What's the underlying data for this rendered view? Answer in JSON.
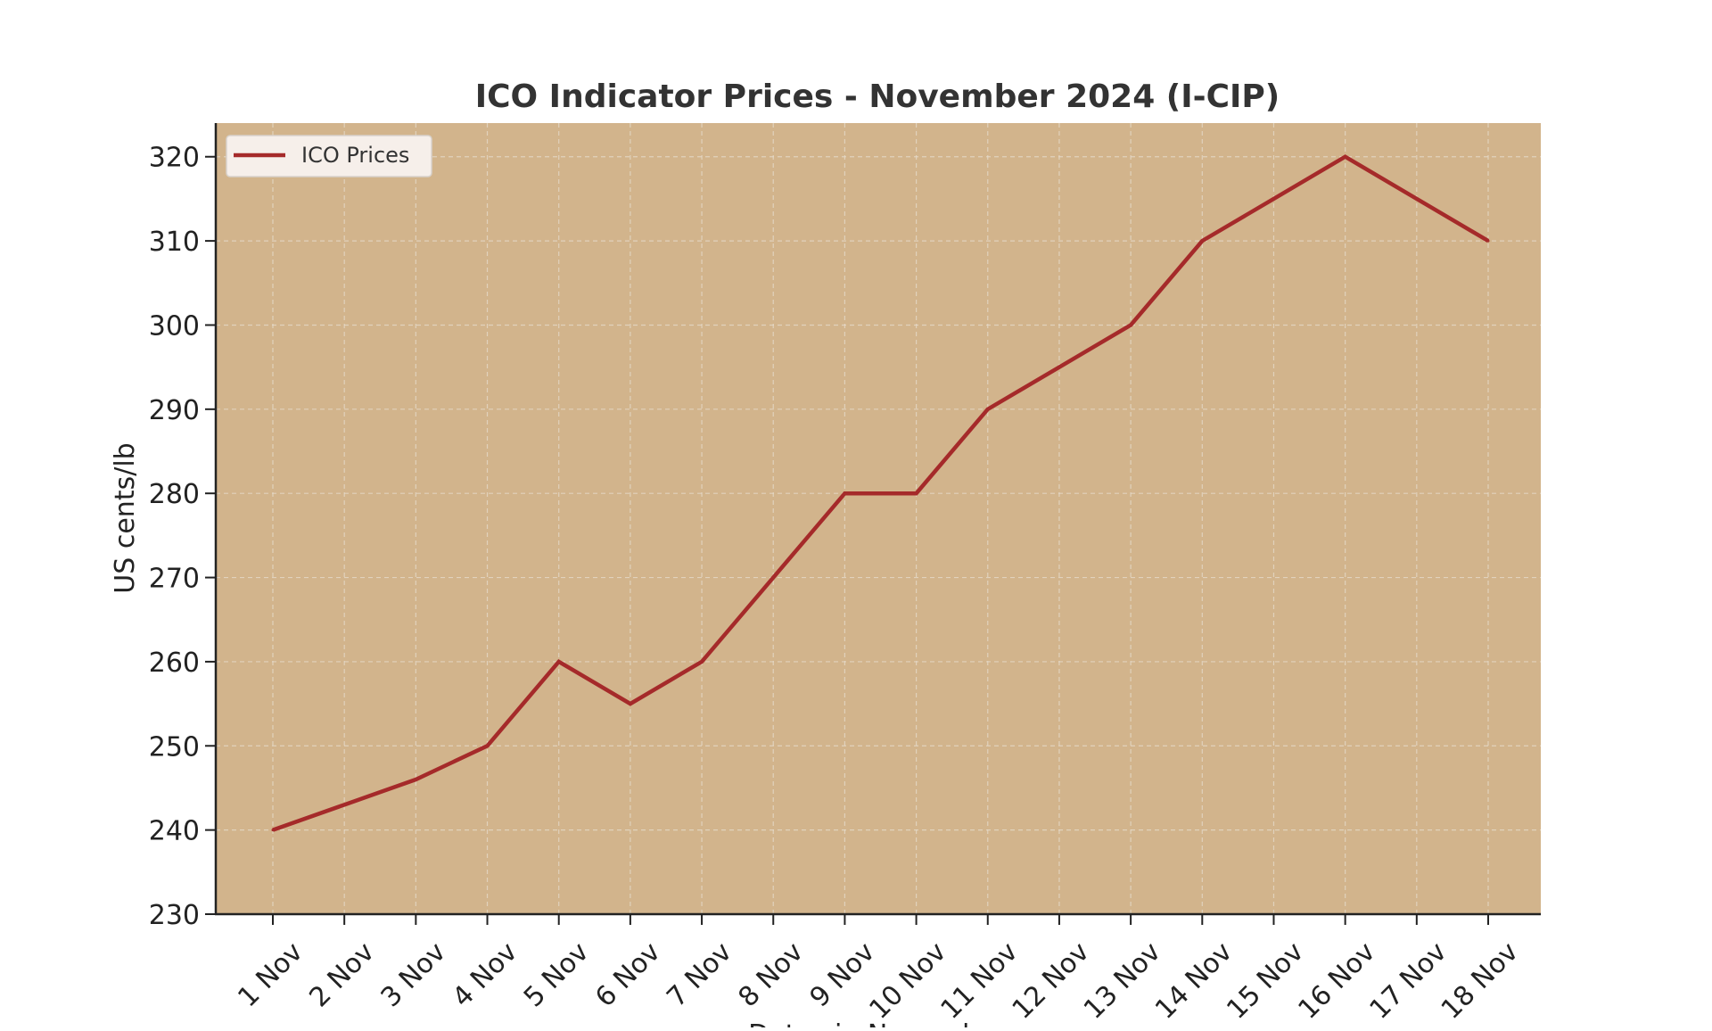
{
  "chart_data": {
    "type": "line",
    "title": "ICO Indicator Prices - November 2024 (I-CIP)",
    "xlabel": "Dates in November",
    "ylabel": "US cents/lb",
    "categories": [
      "1 Nov",
      "2 Nov",
      "3 Nov",
      "4 Nov",
      "5 Nov",
      "6 Nov",
      "7 Nov",
      "8 Nov",
      "9 Nov",
      "10 Nov",
      "11 Nov",
      "12 Nov",
      "13 Nov",
      "14 Nov",
      "15 Nov",
      "16 Nov",
      "17 Nov",
      "18 Nov"
    ],
    "series": [
      {
        "name": "ICO Prices",
        "values": [
          240,
          243,
          246,
          250,
          260,
          255,
          260,
          270,
          280,
          280,
          290,
          295,
          300,
          310,
          315,
          320,
          315,
          310
        ],
        "color": "#a52a2a"
      }
    ],
    "ylim": [
      230,
      324
    ],
    "yticks": [
      230,
      240,
      250,
      260,
      270,
      280,
      290,
      300,
      310,
      320
    ],
    "grid": true,
    "legend_position": "top-left",
    "plot_background": "#d2b48c"
  }
}
